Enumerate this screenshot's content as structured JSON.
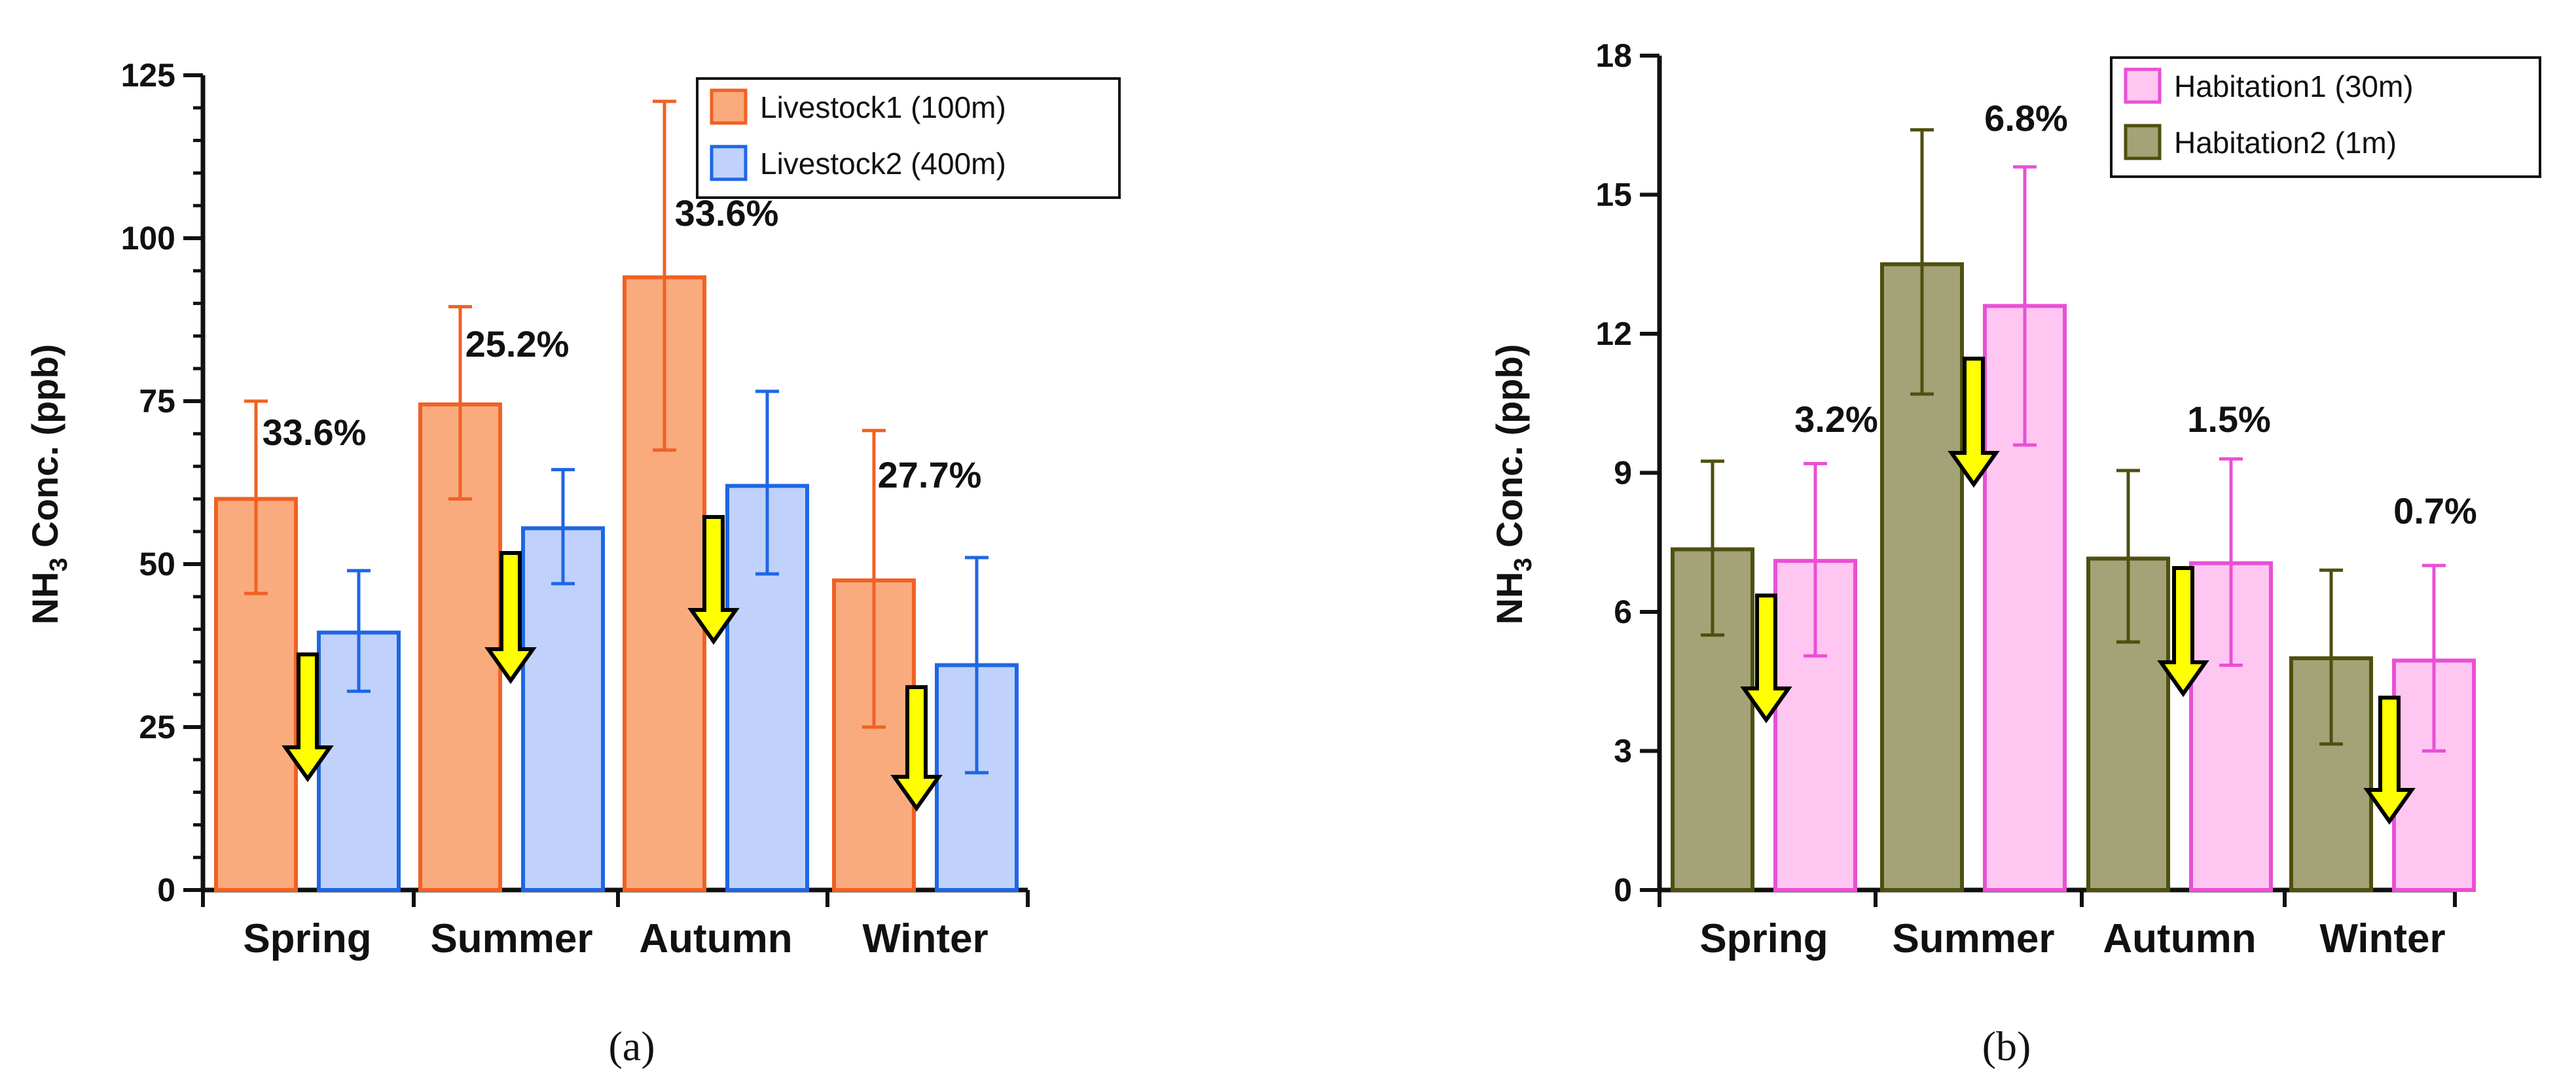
{
  "chart_data": [
    {
      "type": "bar",
      "panel_label": "(a)",
      "ylabel": "NH",
      "ylabel_subscript": "3",
      "ylabel_suffix": " Conc. (ppb)",
      "ylim": [
        0,
        125
      ],
      "yticks": [
        0,
        25,
        50,
        75,
        100,
        125
      ],
      "categories": [
        "Spring",
        "Summer",
        "Autumn",
        "Winter"
      ],
      "series": [
        {
          "name": "Livestock1 (100m)",
          "values": [
            60,
            74.5,
            94,
            47.5
          ],
          "err_low": [
            45.5,
            60,
            67.5,
            25
          ],
          "err_high": [
            75,
            89.5,
            121,
            70.5
          ],
          "fill": "#f9ab7e",
          "stroke": "#f06124"
        },
        {
          "name": "Livestock2 (400m)",
          "values": [
            39.5,
            55.5,
            62,
            34.5
          ],
          "err_low": [
            30.5,
            47,
            48.5,
            18
          ],
          "err_high": [
            49,
            64.5,
            76.5,
            51
          ],
          "fill": "#c0d2fb",
          "stroke": "#1f66e5"
        }
      ],
      "annotations": [
        "33.6%",
        "25.2%",
        "33.6%",
        "27.7%"
      ],
      "colors": {
        "arrow_fill": "#ffff00",
        "arrow_stroke": "#000000"
      }
    },
    {
      "type": "bar",
      "panel_label": "(b)",
      "ylabel": "NH",
      "ylabel_subscript": "3",
      "ylabel_suffix": " Conc. (ppb)",
      "ylim": [
        0,
        18
      ],
      "yticks": [
        0,
        3,
        6,
        9,
        12,
        15,
        18
      ],
      "categories": [
        "Spring",
        "Summer",
        "Autumn",
        "Winter"
      ],
      "series": [
        {
          "name": "Habitation2  (1m)",
          "values": [
            7.35,
            13.5,
            7.15,
            5
          ],
          "err_low": [
            5.5,
            10.7,
            5.35,
            3.15
          ],
          "err_high": [
            9.25,
            16.4,
            9.05,
            6.9
          ],
          "fill": "#a3a377",
          "stroke": "#4f4f0f"
        },
        {
          "name": "Habitation1  (30m)",
          "values": [
            7.1,
            12.6,
            7.05,
            4.95
          ],
          "err_low": [
            5.05,
            9.6,
            4.85,
            3
          ],
          "err_high": [
            9.2,
            15.6,
            9.3,
            7
          ],
          "fill": "#ffc6f1",
          "stroke": "#ea4fd5"
        }
      ],
      "legend_order": [
        "Habitation1  (30m)",
        "Habitation2  (1m)"
      ],
      "annotations": [
        "3.2%",
        "6.8%",
        "1.5%",
        "0.7%"
      ],
      "colors": {
        "arrow_fill": "#ffff00",
        "arrow_stroke": "#000000"
      }
    }
  ]
}
